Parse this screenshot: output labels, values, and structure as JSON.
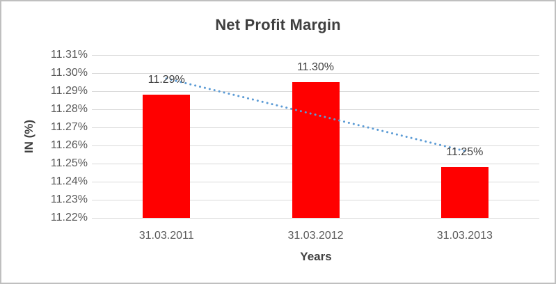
{
  "chart_data": {
    "type": "bar",
    "title": "Net Profit Margin",
    "xlabel": "Years",
    "ylabel": "IN (%)",
    "categories": [
      "31.03.2011",
      "31.03.2012",
      "31.03.2013"
    ],
    "series": [
      {
        "name": "Net Profit Margin",
        "values": [
          11.288,
          11.295,
          11.248
        ],
        "color": "#ff0000"
      }
    ],
    "data_labels": [
      "11.29%",
      "11.30%",
      "11.25%"
    ],
    "yticks": [
      "11.31%",
      "11.30%",
      "11.29%",
      "11.28%",
      "11.27%",
      "11.26%",
      "11.25%",
      "11.24%",
      "11.23%",
      "11.22%"
    ],
    "ylim": [
      11.22,
      11.31
    ],
    "ytick_step": 0.01,
    "grid": true,
    "legend": false,
    "trendline": {
      "type": "linear",
      "style": "dotted",
      "color": "#5b9bd5",
      "start_value": 11.297,
      "end_value": 11.257
    },
    "colors": {
      "bar": "#ff0000",
      "trendline": "#5b9bd5",
      "gridline": "#d9d9d9",
      "tick_label": "#595959",
      "title": "#3f3f3f",
      "axis_title": "#404040",
      "data_label": "#404040",
      "border": "#bfbfbf"
    }
  }
}
